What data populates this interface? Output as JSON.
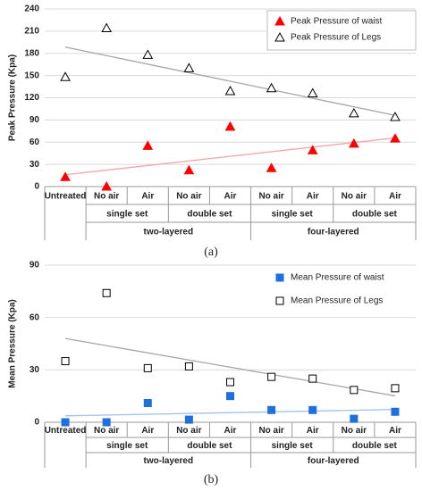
{
  "chart_data": [
    {
      "type": "scatter",
      "caption": "(a)",
      "ylabel": "Peak Pressure (Kpa)",
      "categories": [
        "Untreated",
        "No air",
        "Air",
        "No air",
        "Air",
        "No air",
        "Air",
        "No air",
        "Air"
      ],
      "subcategories": [
        null,
        "single set",
        "single set",
        "double set",
        "double set",
        "single set",
        "single set",
        "double set",
        "double set"
      ],
      "groups": [
        null,
        "two-layered",
        "two-layered",
        "two-layered",
        "two-layered",
        "four-layered",
        "four-layered",
        "four-layered",
        "four-layered"
      ],
      "ylim": [
        0,
        240
      ],
      "yticks": [
        0,
        30,
        60,
        90,
        120,
        150,
        180,
        210,
        240
      ],
      "grid": true,
      "legend": "upper right",
      "legend_box": true,
      "trendline": true,
      "series": [
        {
          "name": "Peak Pressure of waist",
          "color": "#ff0000",
          "marker": "triangle",
          "filled": true,
          "trend_color": "#f4a3a8",
          "values": [
            13,
            0,
            55,
            22,
            81,
            25,
            49,
            58,
            65
          ]
        },
        {
          "name": "Peak Pressure of Legs",
          "color": "#000000",
          "marker": "triangle",
          "filled": false,
          "trend_color": "#a6a6a6",
          "values": [
            148,
            214,
            178,
            160,
            129,
            133,
            126,
            99,
            94
          ]
        }
      ]
    },
    {
      "type": "scatter",
      "caption": "(b)",
      "ylabel": "Mean Pressure (Kpa)",
      "categories": [
        "Untreated",
        "No air",
        "Air",
        "No air",
        "Air",
        "No air",
        "Air",
        "No air",
        "Air"
      ],
      "subcategories": [
        null,
        "single set",
        "single set",
        "double set",
        "double set",
        "single set",
        "single set",
        "double set",
        "double set"
      ],
      "groups": [
        null,
        "two-layered",
        "two-layered",
        "two-layered",
        "two-layered",
        "four-layered",
        "four-layered",
        "four-layered",
        "four-layered"
      ],
      "ylim": [
        0,
        90
      ],
      "yticks": [
        0,
        30,
        60,
        90
      ],
      "grid": true,
      "legend": "upper right",
      "legend_box": false,
      "trendline": true,
      "series": [
        {
          "name": "Mean Pressure of waist",
          "color": "#1f6fde",
          "marker": "square",
          "filled": true,
          "trend_color": "#9dc3e6",
          "values": [
            0,
            0,
            11,
            1.5,
            15,
            7,
            7,
            2,
            6
          ]
        },
        {
          "name": "Mean Pressure of Legs",
          "color": "#000000",
          "marker": "square",
          "filled": false,
          "trend_color": "#a6a6a6",
          "values": [
            35,
            74,
            31,
            32,
            23,
            26,
            25,
            18.5,
            19.5
          ]
        }
      ]
    }
  ]
}
